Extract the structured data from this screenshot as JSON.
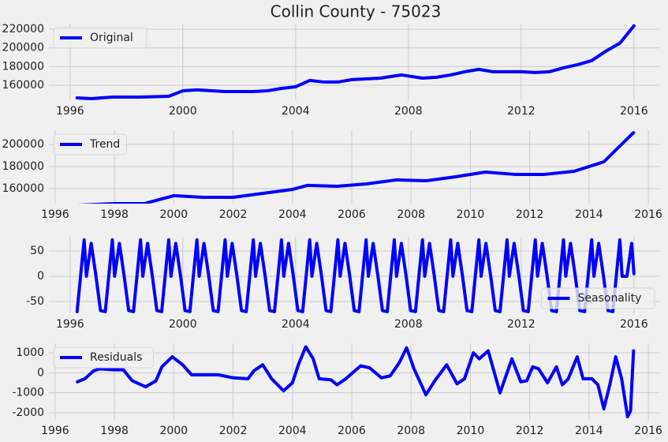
{
  "chart_data": [
    {
      "type": "line",
      "title": "Collin County - 75023",
      "grid": true,
      "legend": "upper left",
      "xlim": [
        1995.25,
        2016.9
      ],
      "ylim": [
        143900,
        225900
      ],
      "xticks": [
        1996,
        2000,
        2004,
        2008,
        2012,
        2016
      ],
      "yticks": [
        160000,
        180000,
        200000,
        220000
      ],
      "x": [
        1996.25,
        1996.75,
        1997.5,
        1998.5,
        1999.5,
        2000,
        2000.5,
        2001.5,
        2002.5,
        2003,
        2003.5,
        2004,
        2004.5,
        2005,
        2005.5,
        2006,
        2007,
        2007.75,
        2008.5,
        2009,
        2009.5,
        2010,
        2010.5,
        2011,
        2011.5,
        2012,
        2012.5,
        2013,
        2013.5,
        2014,
        2014.5,
        2015,
        2015.5,
        2016
      ],
      "series": [
        {
          "name": "Original",
          "color": "#0000ff",
          "values": [
            146400,
            145600,
            147300,
            147300,
            148100,
            154000,
            155000,
            153200,
            153200,
            154000,
            156600,
            158300,
            165100,
            163400,
            163400,
            166000,
            167600,
            171000,
            167600,
            168500,
            171000,
            174400,
            177000,
            174400,
            174400,
            174400,
            173600,
            174400,
            178600,
            182000,
            186300,
            196400,
            205000,
            223600
          ]
        }
      ]
    },
    {
      "type": "line",
      "grid": true,
      "legend": "upper left",
      "xlim": [
        1995.79,
        2016.37
      ],
      "ylim": [
        146400,
        212900
      ],
      "xticks": [
        1996,
        1998,
        2000,
        2002,
        2004,
        2006,
        2008,
        2010,
        2012,
        2014,
        2016
      ],
      "yticks": [
        160000,
        180000,
        200000
      ],
      "x": [
        1996.75,
        1998,
        1999,
        2000,
        2001,
        2002,
        2003,
        2004,
        2004.5,
        2005.5,
        2006.5,
        2007.5,
        2008.5,
        2009.5,
        2010.5,
        2011.5,
        2012.5,
        2013.5,
        2014.5,
        2015.5
      ],
      "series": [
        {
          "name": "Trend",
          "color": "#0000ff",
          "values": [
            145000,
            146400,
            146400,
            153600,
            152100,
            152100,
            155700,
            159300,
            162900,
            162100,
            164300,
            167900,
            167100,
            170700,
            175000,
            172900,
            172900,
            175700,
            184300,
            210700
          ]
        }
      ]
    },
    {
      "type": "line",
      "grid": true,
      "legend": "lower right",
      "xlim": [
        1995.25,
        2016.9
      ],
      "ylim": [
        -73.4,
        78
      ],
      "xticks": [
        1996,
        2000,
        2004,
        2008,
        2012,
        2016
      ],
      "yticks": [
        -50,
        0,
        50
      ],
      "x": [
        1996.25,
        1996.5,
        1996.58,
        1996.75,
        1996.92,
        1997.08,
        1997.25,
        1997.5,
        1997.58,
        1997.75,
        1997.92,
        1998.08,
        1998.25,
        1998.5,
        1998.58,
        1998.75,
        1998.92,
        1999.08,
        1999.25,
        1999.5,
        1999.58,
        1999.75,
        1999.92,
        2000.08,
        2000.25,
        2000.5,
        2000.58,
        2000.75,
        2000.92,
        2001.08,
        2001.25,
        2001.5,
        2001.58,
        2001.75,
        2001.92,
        2002.08,
        2002.25,
        2002.5,
        2002.58,
        2002.75,
        2002.92,
        2003.08,
        2003.25,
        2003.5,
        2003.58,
        2003.75,
        2003.92,
        2004.08,
        2004.25,
        2004.5,
        2004.58,
        2004.75,
        2004.92,
        2005.08,
        2005.25,
        2005.5,
        2005.58,
        2005.75,
        2005.92,
        2006.08,
        2006.25,
        2006.5,
        2006.58,
        2006.75,
        2006.92,
        2007.08,
        2007.25,
        2007.5,
        2007.58,
        2007.75,
        2007.92,
        2008.08,
        2008.25,
        2008.5,
        2008.58,
        2008.75,
        2008.92,
        2009.08,
        2009.25,
        2009.5,
        2009.58,
        2009.75,
        2009.92,
        2010.08,
        2010.25,
        2010.5,
        2010.58,
        2010.75,
        2010.92,
        2011.08,
        2011.25,
        2011.5,
        2011.58,
        2011.75,
        2011.92,
        2012.08,
        2012.25,
        2012.5,
        2012.58,
        2012.75,
        2012.92,
        2013.08,
        2013.25,
        2013.5,
        2013.58,
        2013.75,
        2013.92,
        2014.08,
        2014.25,
        2014.5,
        2014.58,
        2014.75,
        2014.92,
        2015.08,
        2015.25,
        2015.5,
        2015.58,
        2015.75,
        2015.92,
        2016
      ],
      "series": [
        {
          "name": "Seasonality",
          "color": "#0000ff",
          "values": [
            -70,
            72,
            0,
            65,
            0,
            -68,
            -70,
            72,
            0,
            65,
            0,
            -68,
            -70,
            72,
            0,
            65,
            0,
            -68,
            -70,
            72,
            0,
            65,
            0,
            -68,
            -70,
            72,
            0,
            65,
            0,
            -68,
            -70,
            72,
            0,
            65,
            0,
            -68,
            -70,
            72,
            0,
            65,
            0,
            -68,
            -70,
            72,
            0,
            65,
            0,
            -68,
            -70,
            72,
            0,
            65,
            0,
            -68,
            -70,
            72,
            0,
            65,
            0,
            -68,
            -70,
            72,
            0,
            65,
            0,
            -68,
            -70,
            72,
            0,
            65,
            0,
            -68,
            -70,
            72,
            0,
            65,
            0,
            -68,
            -70,
            72,
            0,
            65,
            0,
            -68,
            -70,
            72,
            0,
            65,
            0,
            -68,
            -70,
            72,
            0,
            65,
            0,
            -68,
            -70,
            72,
            0,
            65,
            0,
            -68,
            -70,
            72,
            0,
            65,
            0,
            -68,
            -70,
            72,
            0,
            65,
            0,
            -68,
            -70,
            72,
            0,
            0,
            65,
            5
          ]
        }
      ]
    },
    {
      "type": "line",
      "grid": true,
      "legend": "upper left",
      "xlim": [
        1995.79,
        2016.37
      ],
      "ylim": [
        -2356,
        1474
      ],
      "xticks": [
        1996,
        1998,
        2000,
        2002,
        2004,
        2006,
        2008,
        2010,
        2012,
        2014,
        2016
      ],
      "yticks": [
        -2000,
        -1000,
        0,
        1000
      ],
      "x": [
        1996.75,
        1997.0,
        1997.3,
        1997.5,
        1998.0,
        1998.3,
        1998.6,
        1999.05,
        1999.4,
        1999.6,
        1999.95,
        2000.3,
        2000.6,
        2001.0,
        2001.5,
        2002.0,
        2002.5,
        2002.7,
        2003.0,
        2003.3,
        2003.7,
        2004.0,
        2004.2,
        2004.45,
        2004.7,
        2004.9,
        2005.3,
        2005.5,
        2005.8,
        2006.3,
        2006.6,
        2007.0,
        2007.3,
        2007.6,
        2007.85,
        2008.1,
        2008.5,
        2008.8,
        2009.2,
        2009.55,
        2009.8,
        2010.1,
        2010.3,
        2010.6,
        2011.0,
        2011.4,
        2011.7,
        2011.9,
        2012.1,
        2012.3,
        2012.6,
        2012.9,
        2013.1,
        2013.3,
        2013.6,
        2013.8,
        2014.1,
        2014.3,
        2014.5,
        2014.7,
        2014.9,
        2015.1,
        2015.3,
        2015.4,
        2015.5
      ],
      "series": [
        {
          "name": "Residuals",
          "color": "#0000ff",
          "values": [
            -450,
            -300,
            100,
            200,
            150,
            150,
            -400,
            -700,
            -400,
            300,
            800,
            400,
            -100,
            -100,
            -100,
            -250,
            -300,
            100,
            400,
            -300,
            -900,
            -500,
            400,
            1300,
            700,
            -300,
            -350,
            -600,
            -300,
            350,
            250,
            -250,
            -150,
            500,
            1250,
            200,
            -1100,
            -400,
            400,
            -550,
            -300,
            1000,
            700,
            1100,
            -1000,
            700,
            -450,
            -400,
            300,
            200,
            -500,
            300,
            -600,
            -300,
            800,
            -300,
            -300,
            -600,
            -1800,
            -600,
            800,
            -300,
            -2200,
            -1900,
            1100
          ]
        }
      ]
    }
  ]
}
